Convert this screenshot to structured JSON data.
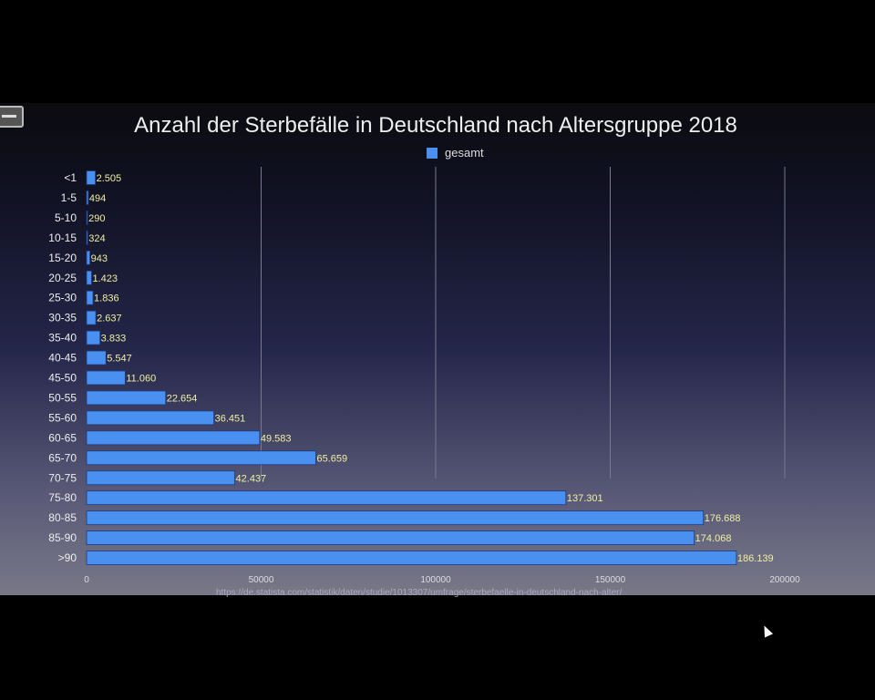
{
  "chart_data": {
    "type": "bar",
    "orientation": "horizontal",
    "title": "Anzahl der Sterbefälle in Deutschland nach Altersgruppe 2018",
    "categories": [
      "<1",
      "1-5",
      "5-10",
      "10-15",
      "15-20",
      "20-25",
      "25-30",
      "30-35",
      "35-40",
      "40-45",
      "45-50",
      "50-55",
      "55-60",
      "60-65",
      "65-70",
      "70-75",
      "75-80",
      "80-85",
      "85-90",
      ">90"
    ],
    "series": [
      {
        "name": "gesamt",
        "values": [
          2505,
          494,
          290,
          324,
          943,
          1423,
          1836,
          2637,
          3833,
          5547,
          11060,
          22654,
          36451,
          49583,
          65659,
          42437,
          137301,
          176688,
          174068,
          186139
        ]
      }
    ],
    "data_labels": [
      "2.505",
      "494",
      "290",
      "324",
      "943",
      "1.423",
      "1.836",
      "2.637",
      "3.833",
      "5.547",
      "11.060",
      "22.654",
      "36.451",
      "49.583",
      "65.659",
      "42.437",
      "137.301",
      "176.688",
      "174.068",
      "186.139"
    ],
    "xlim": [
      0,
      200000
    ],
    "xticks": [
      "0",
      "50000",
      "100000",
      "150000",
      "200000"
    ],
    "grid": true,
    "legend_position": "top-center",
    "colors": {
      "bar": "#4a90f0",
      "label": "#f0f0a0"
    },
    "source": "https://de.statista.com/statistik/daten/studie/1013307/umfrage/sterbefaelle-in-deutschland-nach-alter/"
  }
}
